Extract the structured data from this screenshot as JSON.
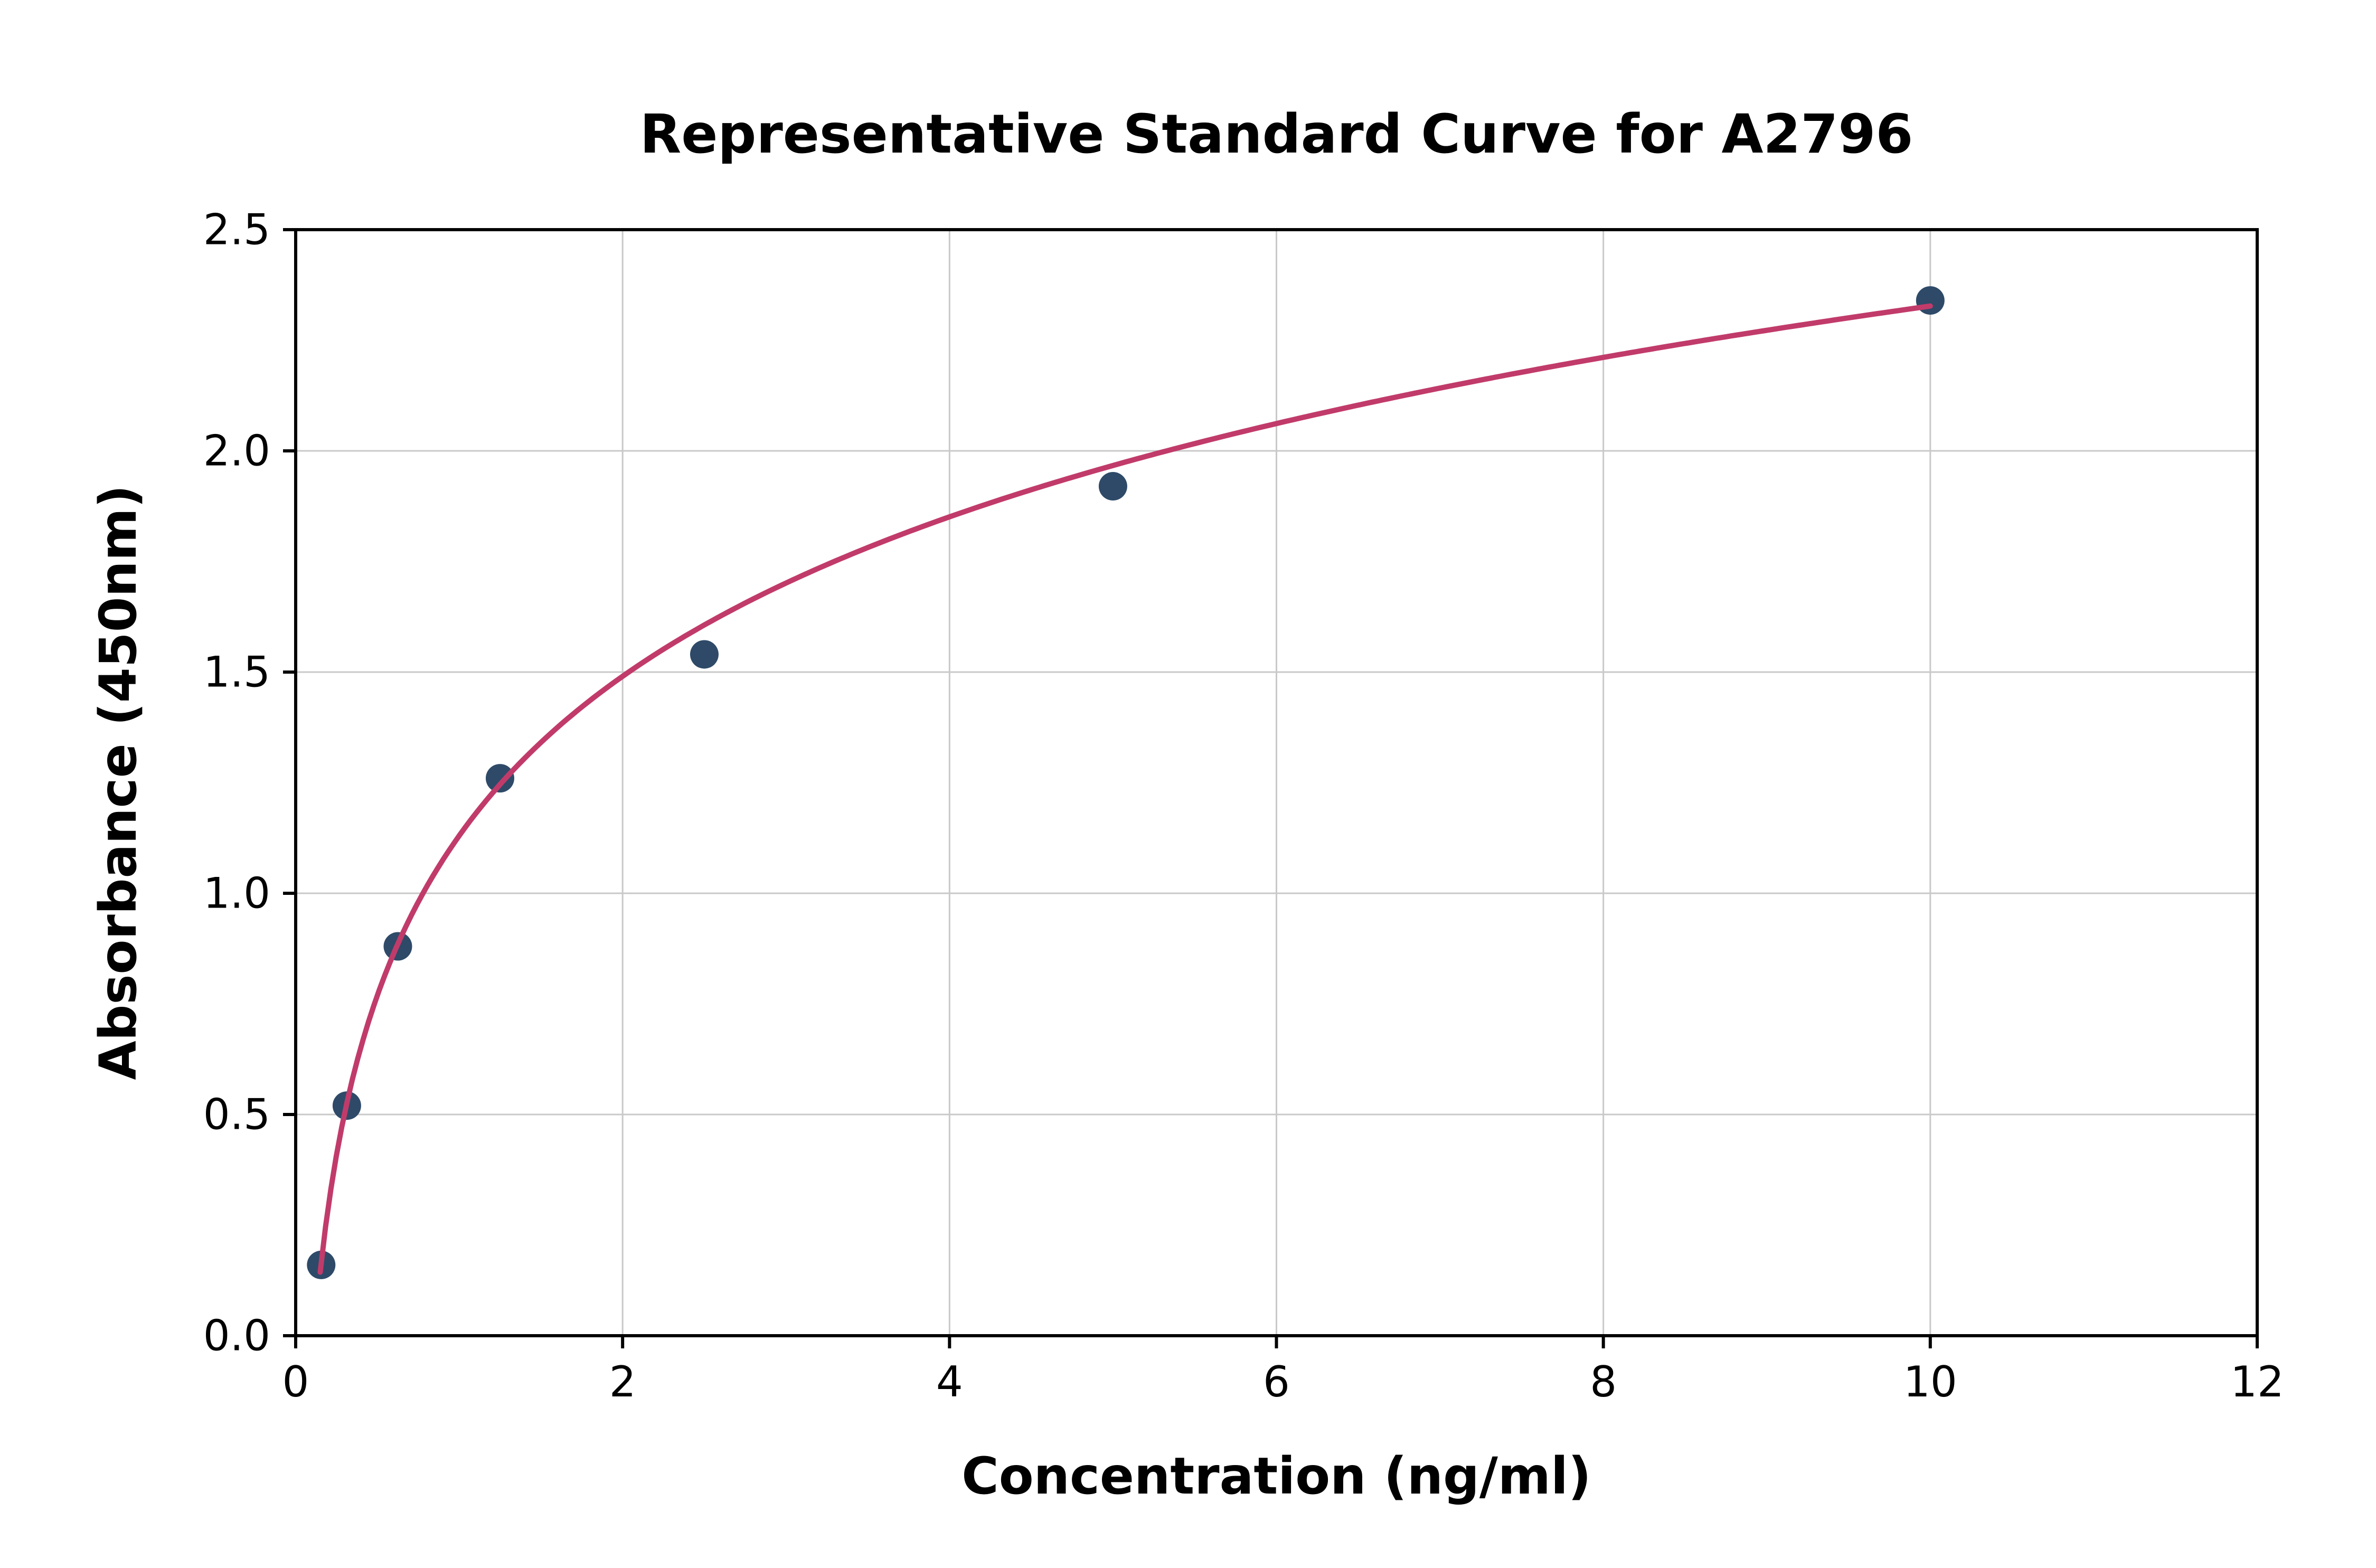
{
  "chart_data": {
    "type": "scatter",
    "title": "Representative Standard Curve for A2796",
    "xlabel": "Concentration (ng/ml)",
    "ylabel": "Absorbance (450nm)",
    "xlim": [
      0,
      12
    ],
    "ylim": [
      0,
      2.5
    ],
    "grid": true,
    "x_ticks": {
      "values": [
        0,
        2,
        4,
        6,
        8,
        10,
        12
      ],
      "labels": [
        "0",
        "2",
        "4",
        "6",
        "8",
        "10",
        "12"
      ]
    },
    "y_ticks": {
      "values": [
        0,
        0.5,
        1.0,
        1.5,
        2.0,
        2.5
      ],
      "labels": [
        "0.0",
        "0.5",
        "1.0",
        "1.5",
        "2.0",
        "2.5"
      ]
    },
    "series": [
      {
        "name": "standards",
        "type": "scatter",
        "x": [
          0.156,
          0.313,
          0.625,
          1.25,
          2.5,
          5,
          10
        ],
        "y": [
          0.16,
          0.52,
          0.88,
          1.26,
          1.54,
          1.92,
          2.34
        ],
        "color": "#2e4a68"
      },
      {
        "name": "fit-curve",
        "type": "line",
        "fit": {
          "kind": "log",
          "a": 0.52,
          "b": 1.13,
          "x_start": 0.15,
          "x_end": 10.0
        },
        "color": "#c13b6a"
      }
    ],
    "colors": {
      "grid": "#c9c9c9",
      "axis": "#000000",
      "background": "#ffffff"
    }
  }
}
